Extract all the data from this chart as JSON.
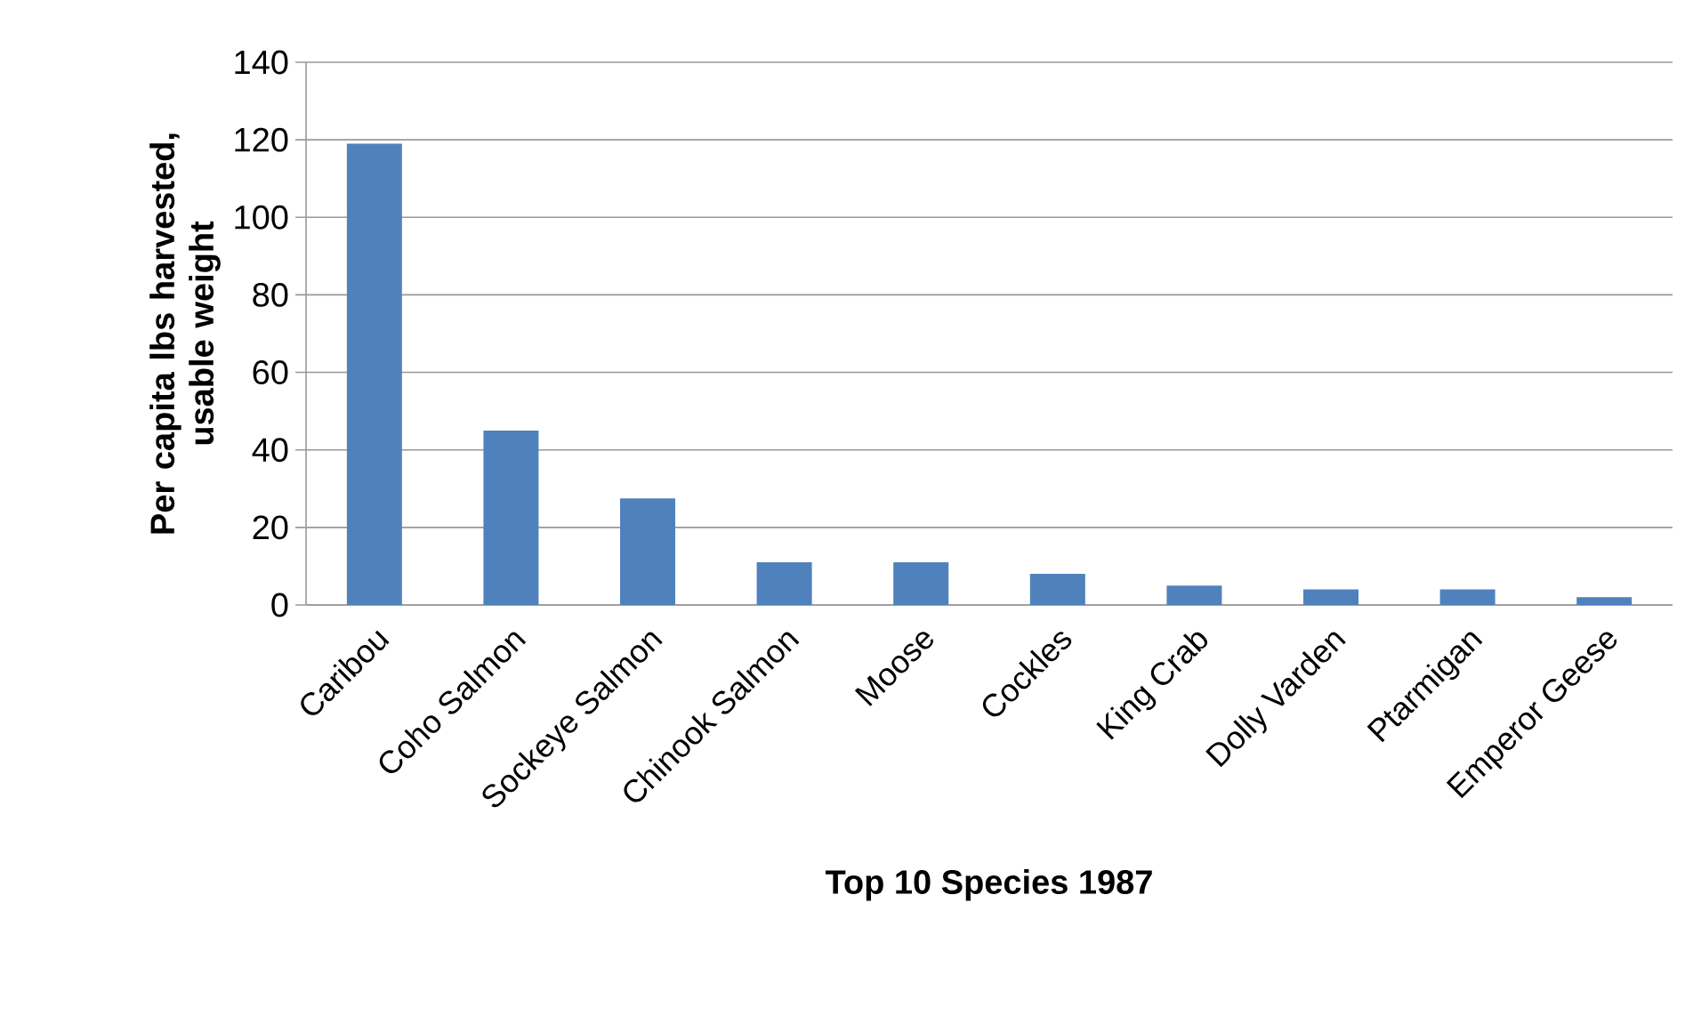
{
  "chart_data": {
    "type": "bar",
    "xlabel": "Top 10 Species 1987",
    "ylabel": "Per capita lbs harvested, usable weight",
    "categories": [
      "Caribou",
      "Coho Salmon",
      "Sockeye Salmon",
      "Chinook Salmon",
      "Moose",
      "Cockles",
      "King Crab",
      "Dolly Varden",
      "Ptarmigan",
      "Emperor Geese"
    ],
    "values": [
      119,
      45,
      27.5,
      11,
      11,
      8,
      5,
      4,
      4,
      2
    ],
    "color": "#4f81bd",
    "ylim": [
      0,
      140
    ],
    "yticks": [
      0,
      20,
      40,
      60,
      80,
      100,
      120,
      140
    ],
    "grid": "y"
  }
}
